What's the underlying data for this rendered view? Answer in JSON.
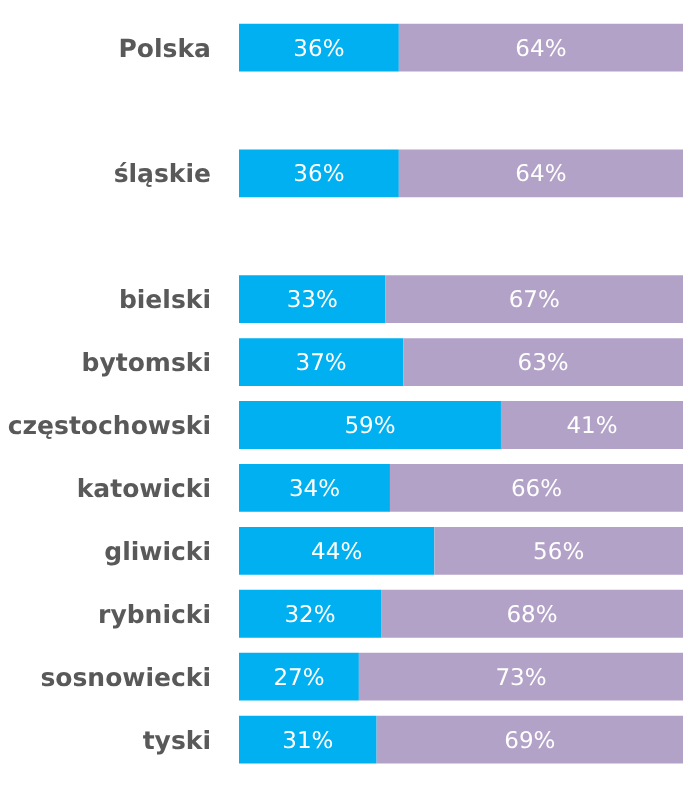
{
  "chart_data": {
    "type": "bar",
    "orientation": "horizontal",
    "stacked": true,
    "categories": [
      "Polska",
      null,
      "śląskie",
      null,
      "bielski",
      "bytomski",
      "częstochowski",
      "katowicki",
      "gliwicki",
      "rybnicki",
      "sosnowiecki",
      "tyski"
    ],
    "series": [
      {
        "color": "#00b0f0",
        "values": [
          36,
          null,
          36,
          null,
          33,
          37,
          59,
          34,
          44,
          32,
          27,
          31
        ],
        "value_labels": [
          "36%",
          null,
          "36%",
          null,
          "33%",
          "37%",
          "59%",
          "34%",
          "44%",
          "32%",
          "27%",
          "31%"
        ]
      },
      {
        "color": "#b3a2c7",
        "values": [
          64,
          null,
          64,
          null,
          67,
          63,
          41,
          66,
          56,
          68,
          73,
          69
        ],
        "value_labels": [
          "64%",
          null,
          "64%",
          null,
          "67%",
          "63%",
          "41%",
          "66%",
          "56%",
          "68%",
          "73%",
          "69%"
        ]
      }
    ]
  }
}
